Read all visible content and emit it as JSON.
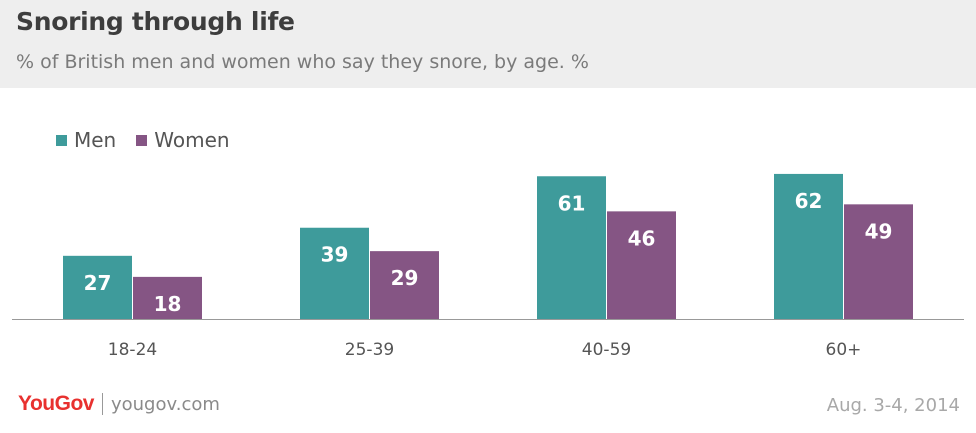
{
  "header": {
    "title": "Snoring through life",
    "subtitle": "% of British men and women who say they snore, by age. %"
  },
  "colors": {
    "men": "#3e9b9b",
    "women": "#855584",
    "axis": "#999999"
  },
  "chart_data": {
    "type": "bar",
    "title": "Snoring through life",
    "subtitle": "% of British men and women who say they snore, by age. %",
    "categories": [
      "18-24",
      "25-39",
      "40-59",
      "60+"
    ],
    "series": [
      {
        "name": "Men",
        "values": [
          27,
          39,
          61,
          62
        ]
      },
      {
        "name": "Women",
        "values": [
          18,
          29,
          46,
          49
        ]
      }
    ],
    "legend_position": "top-left",
    "grid": false,
    "ylim": [
      0,
      65
    ]
  },
  "footer": {
    "logo": "YouGov",
    "site": "yougov.com",
    "date": "Aug. 3-4, 2014"
  }
}
